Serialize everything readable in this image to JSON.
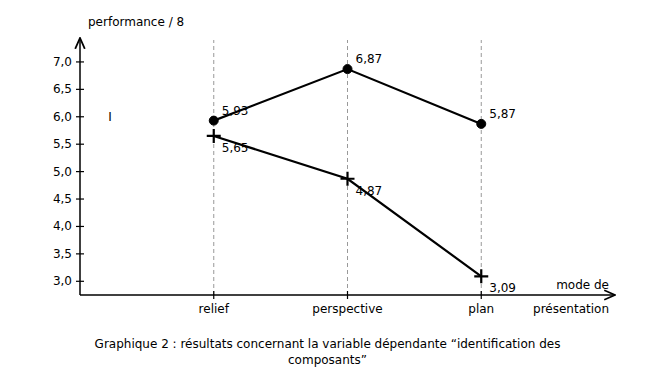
{
  "chart_data": {
    "type": "line",
    "categories": [
      "relief",
      "perspective",
      "plan"
    ],
    "series": [
      {
        "values": [
          5.93,
          6.87,
          5.87
        ],
        "value_labels": [
          "5,93",
          "6,87",
          "5,87"
        ],
        "color": "#000000",
        "marker": "circle"
      },
      {
        "values": [
          5.65,
          4.87,
          3.09
        ],
        "value_labels": [
          "5,65",
          "4,87",
          "3,09"
        ],
        "color": "#000000",
        "marker": "plus"
      }
    ],
    "ylim": [
      2.75,
      7.4
    ],
    "yticks": [
      {
        "value": 3.0,
        "label": "3,0"
      },
      {
        "value": 3.5,
        "label": "3,5"
      },
      {
        "value": 4.0,
        "label": "4,0"
      },
      {
        "value": 4.5,
        "label": "4,5"
      },
      {
        "value": 5.0,
        "label": "5,0"
      },
      {
        "value": 5.5,
        "label": "5,5"
      },
      {
        "value": 6.0,
        "label": "6,0"
      },
      {
        "value": 6.5,
        "label": "6,5"
      },
      {
        "value": 7.0,
        "label": "7,0"
      }
    ],
    "y_label": "performance / 8",
    "x_label": [
      "mode de",
      "présentation"
    ],
    "caption": "Graphique 2 : résultats concernant la variable dépendante “identification des\ncomposants”",
    "annotations": [
      {
        "text": "I",
        "y": 6.0
      }
    ],
    "grid": "x",
    "data_labels": true
  }
}
